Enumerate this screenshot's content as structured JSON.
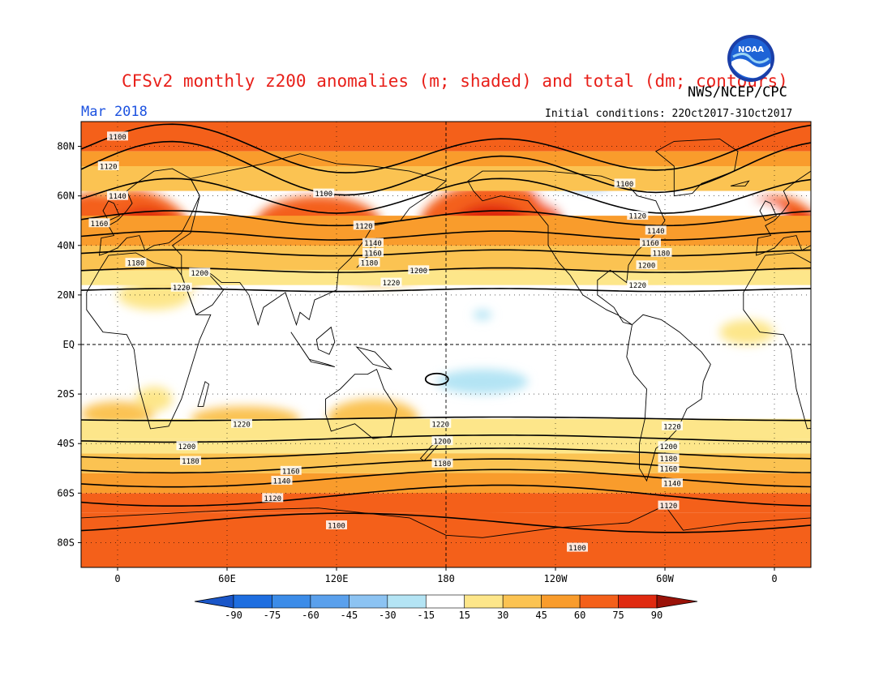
{
  "header": {
    "title": "CFSv2 monthly z200 anomalies (m; shaded) and total (dm; contours)",
    "agency": "NWS/NCEP/CPC",
    "month": "Mar 2018",
    "initial_conditions": "Initial conditions: 22Oct2017-31Oct2017",
    "logo_text": "NOAA"
  },
  "axes": {
    "lat_labels": [
      "80N",
      "60N",
      "40N",
      "20N",
      "EQ",
      "20S",
      "40S",
      "60S",
      "80S"
    ],
    "lon_labels": [
      "0",
      "60E",
      "120E",
      "180",
      "120W",
      "60W",
      "0"
    ]
  },
  "colorbar": {
    "labels": [
      "-90",
      "-75",
      "-60",
      "-45",
      "-30",
      "-15",
      "15",
      "30",
      "45",
      "60",
      "75",
      "90"
    ],
    "colors": [
      "#1e6ee0",
      "#3c8ce8",
      "#5aa0ec",
      "#8cc3f2",
      "#b4e4f4",
      "#ffffff",
      "#fde68a",
      "#fbc352",
      "#f99c2c",
      "#f4601a",
      "#e02a10",
      "#b01a08"
    ],
    "end_low": "#1a56c8",
    "end_high": "#9a1208"
  },
  "colors": {
    "ocean_bg": "#ffffff",
    "coast": "#000000",
    "contour": "#000000"
  },
  "contour_labels": {
    "north": [
      {
        "text": "1100",
        "lon": 0,
        "lat": 84
      },
      {
        "text": "1120",
        "lon": -5,
        "lat": 72
      },
      {
        "text": "1140",
        "lon": 0,
        "lat": 60
      },
      {
        "text": "1160",
        "lon": -10,
        "lat": 49
      },
      {
        "text": "1180",
        "lon": 10,
        "lat": 33
      },
      {
        "text": "1200",
        "lon": 45,
        "lat": 29
      },
      {
        "text": "1220",
        "lon": 35,
        "lat": 23
      },
      {
        "text": "1100",
        "lon": 113,
        "lat": 61
      },
      {
        "text": "1120",
        "lon": 135,
        "lat": 48
      },
      {
        "text": "1140",
        "lon": 140,
        "lat": 41
      },
      {
        "text": "1160",
        "lon": 140,
        "lat": 37
      },
      {
        "text": "1180",
        "lon": 138,
        "lat": 33
      },
      {
        "text": "1200",
        "lon": 165,
        "lat": 30
      },
      {
        "text": "1220",
        "lon": 150,
        "lat": 25
      },
      {
        "text": "1100",
        "lon": 278,
        "lat": 65
      },
      {
        "text": "1120",
        "lon": 285,
        "lat": 52
      },
      {
        "text": "1140",
        "lon": 295,
        "lat": 46
      },
      {
        "text": "1160",
        "lon": 292,
        "lat": 41
      },
      {
        "text": "1180",
        "lon": 298,
        "lat": 37
      },
      {
        "text": "1200",
        "lon": 290,
        "lat": 32
      },
      {
        "text": "1220",
        "lon": 285,
        "lat": 24
      }
    ],
    "south": [
      {
        "text": "1220",
        "lon": 68,
        "lat": -32
      },
      {
        "text": "1200",
        "lon": 38,
        "lat": -41
      },
      {
        "text": "1180",
        "lon": 40,
        "lat": -47
      },
      {
        "text": "1160",
        "lon": 95,
        "lat": -51
      },
      {
        "text": "1140",
        "lon": 90,
        "lat": -55
      },
      {
        "text": "1120",
        "lon": 85,
        "lat": -62
      },
      {
        "text": "1100",
        "lon": 120,
        "lat": -73
      },
      {
        "text": "1220",
        "lon": 177,
        "lat": -32
      },
      {
        "text": "1200",
        "lon": 178,
        "lat": -39
      },
      {
        "text": "1180",
        "lon": 178,
        "lat": -48
      },
      {
        "text": "1100",
        "lon": 252,
        "lat": -82
      },
      {
        "text": "1220",
        "lon": 304,
        "lat": -33
      },
      {
        "text": "1200",
        "lon": 302,
        "lat": -41
      },
      {
        "text": "1180",
        "lon": 302,
        "lat": -46
      },
      {
        "text": "1160",
        "lon": 302,
        "lat": -50
      },
      {
        "text": "1140",
        "lon": 304,
        "lat": -56
      },
      {
        "text": "1120",
        "lon": 302,
        "lat": -65
      }
    ]
  }
}
